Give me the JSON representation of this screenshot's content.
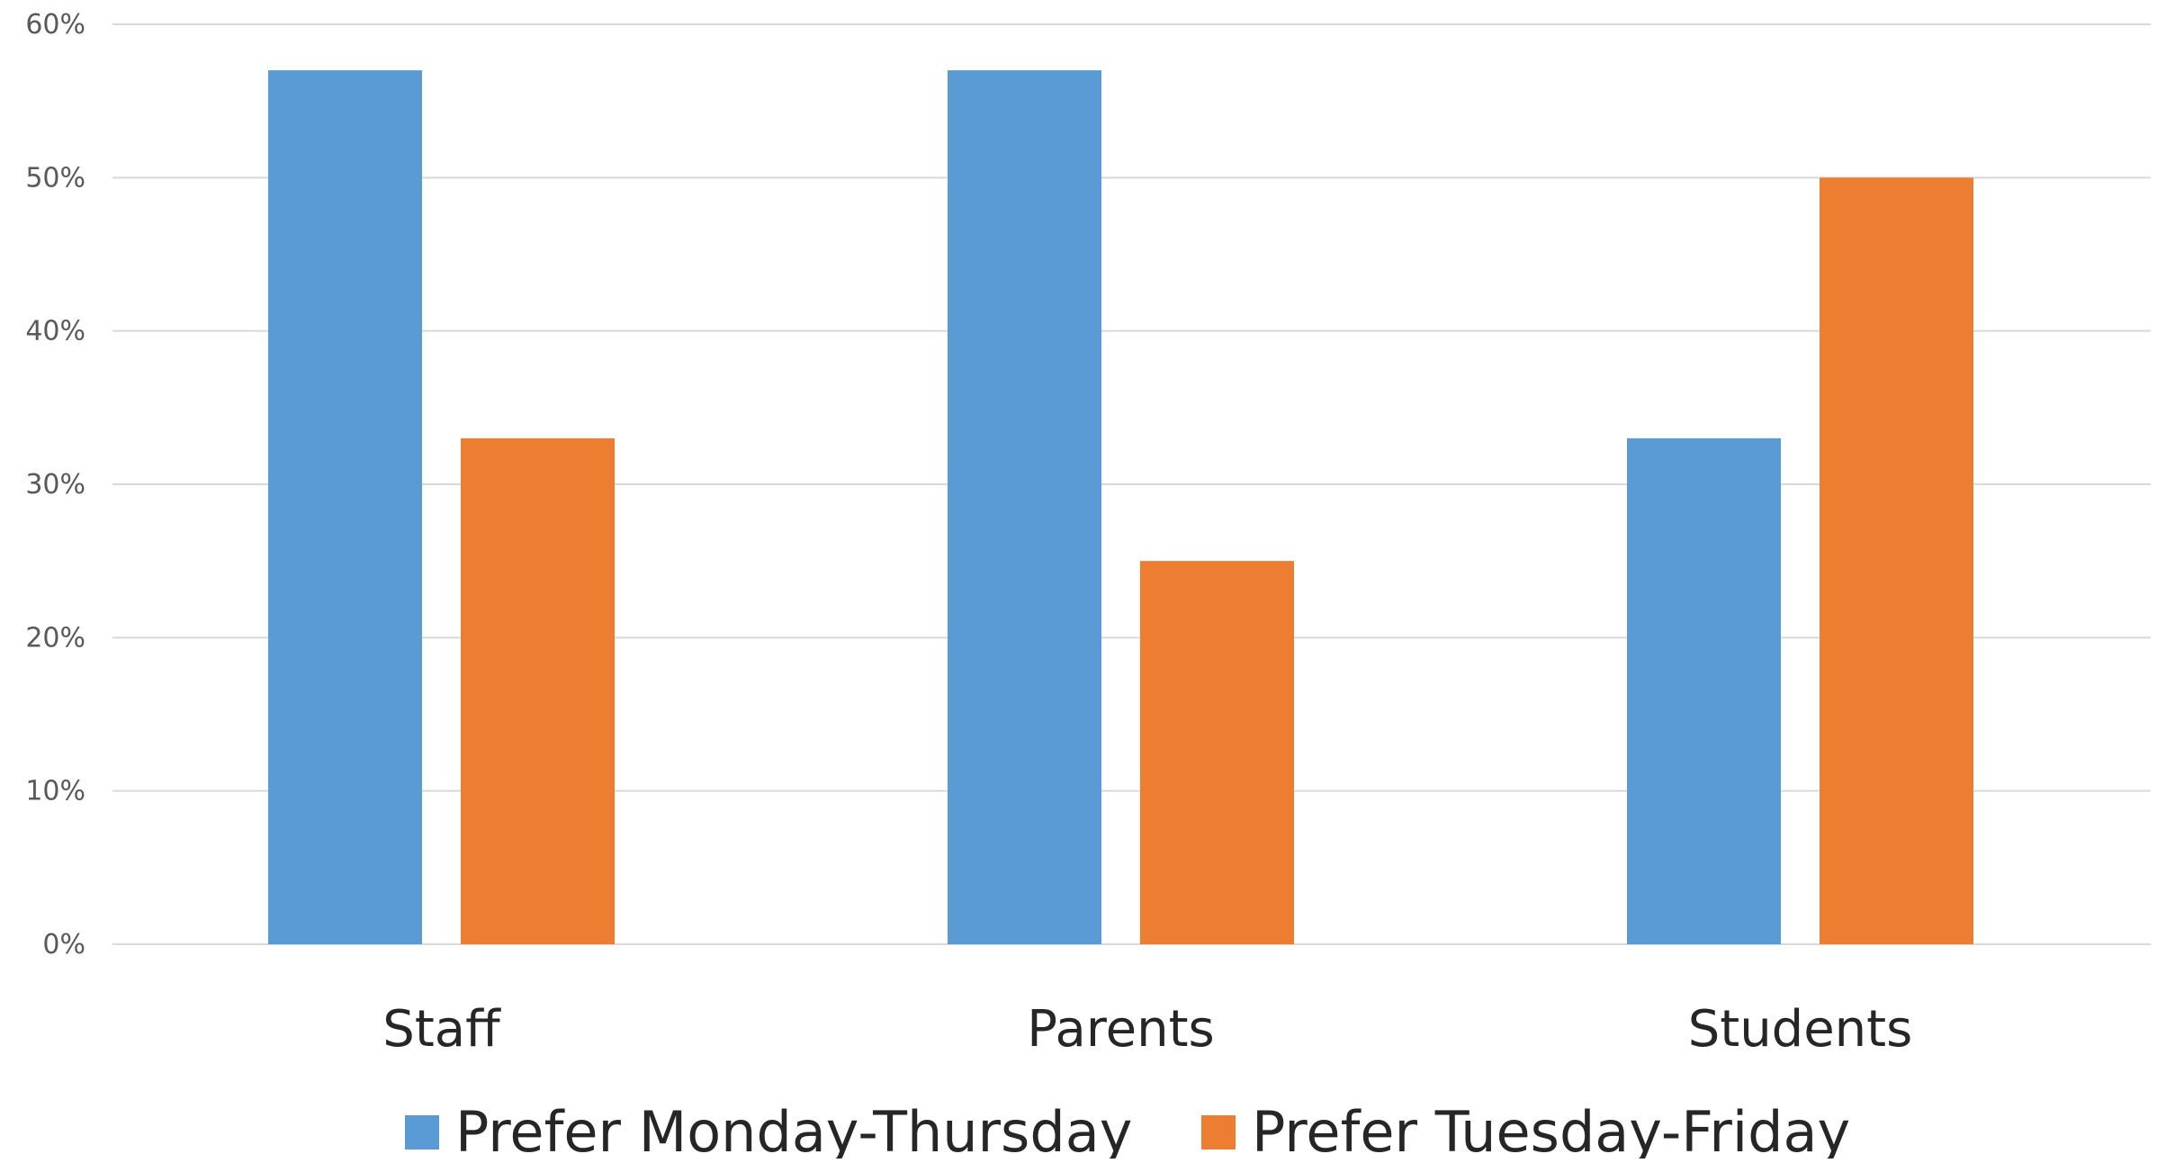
{
  "chart_data": {
    "type": "bar",
    "title": "",
    "xlabel": "",
    "ylabel": "",
    "categories": [
      "Staff",
      "Parents",
      "Students"
    ],
    "series": [
      {
        "name": "Prefer Monday-Thursday",
        "color": "#5B9BD5",
        "values": [
          57,
          57,
          33
        ]
      },
      {
        "name": "Prefer Tuesday-Friday",
        "color": "#ED7D31",
        "values": [
          33,
          25,
          50
        ]
      }
    ],
    "ylim": [
      0,
      60
    ],
    "yticks": [
      0,
      10,
      20,
      30,
      40,
      50,
      60
    ],
    "ytick_labels": [
      "0%",
      "10%",
      "20%",
      "30%",
      "40%",
      "50%",
      "60%"
    ],
    "grid": true,
    "legend_position": "bottom",
    "colors": {
      "gridline": "#d9d9d9",
      "background": "#ffffff"
    }
  }
}
